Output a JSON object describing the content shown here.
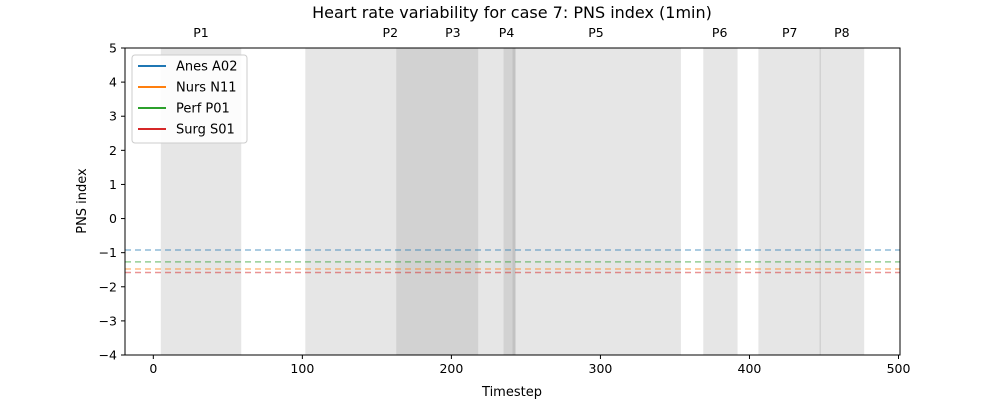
{
  "chart_data": {
    "type": "line",
    "title": "Heart rate variability for case 7: PNS index (1min)",
    "xlabel": "Timestep",
    "ylabel": "PNS index",
    "xlim": [
      -19,
      501
    ],
    "ylim": [
      -4,
      5
    ],
    "x_ticks": [
      0,
      100,
      200,
      300,
      400,
      500
    ],
    "y_ticks": [
      -4,
      -3,
      -2,
      -1,
      0,
      1,
      2,
      3,
      4,
      5
    ],
    "grid": false,
    "legend_position": "top-left",
    "phases": [
      {
        "label": "P1",
        "start": 5,
        "end": 59
      },
      {
        "label": "P2",
        "start": 102,
        "end": 243
      },
      {
        "label": "P3",
        "start": 163,
        "end": 218
      },
      {
        "label": "P4",
        "start": 235,
        "end": 243
      },
      {
        "label": "P5",
        "start": 241,
        "end": 354
      },
      {
        "label": "P6",
        "start": 369,
        "end": 392
      },
      {
        "label": "P7",
        "start": 406,
        "end": 448
      },
      {
        "label": "P8",
        "start": 447,
        "end": 477
      }
    ],
    "phase_label_positions": [
      {
        "label": "P1",
        "x": 32
      },
      {
        "label": "P2",
        "x": 159
      },
      {
        "label": "P3",
        "x": 201
      },
      {
        "label": "P4",
        "x": 237
      },
      {
        "label": "P5",
        "x": 297
      },
      {
        "label": "P6",
        "x": 380
      },
      {
        "label": "P7",
        "x": 427
      },
      {
        "label": "P8",
        "x": 462
      }
    ],
    "series": [
      {
        "name": "Anes A02",
        "color": "#1f77b4",
        "baseline": -0.92
      },
      {
        "name": "Nurs N11",
        "color": "#ff7f0e",
        "baseline": -1.48
      },
      {
        "name": "Perf P01",
        "color": "#2ca02c",
        "baseline": -1.27
      },
      {
        "name": "Surg S01",
        "color": "#d62728",
        "baseline": -1.58
      }
    ]
  }
}
